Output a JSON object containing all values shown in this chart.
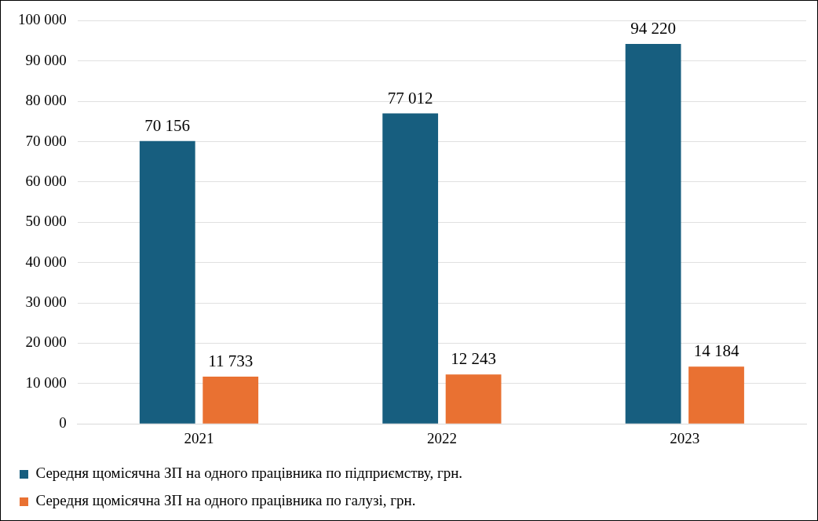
{
  "chart_data": {
    "type": "bar",
    "categories": [
      "2021",
      "2022",
      "2023"
    ],
    "series": [
      {
        "name": "Середня щомісячна ЗП на одного працівника по підприємству, грн.",
        "color": "#175e7f",
        "values": [
          70156,
          77012,
          94220
        ],
        "value_labels": [
          "70 156",
          "77 012",
          "94 220"
        ]
      },
      {
        "name": "Середня щомісячна ЗП на одного працівника по галузі, грн.",
        "color": "#e97132",
        "values": [
          11733,
          12243,
          14184
        ],
        "value_labels": [
          "11 733",
          "12 243",
          "14 184"
        ]
      }
    ],
    "ylim": [
      0,
      100000
    ],
    "yticks": [
      0,
      {
        "value": 10000,
        "label": "10 000"
      },
      {
        "value": 20000,
        "label": "20 000"
      },
      {
        "value": 30000,
        "label": "30 000"
      },
      {
        "value": 40000,
        "label": "40 000"
      },
      {
        "value": 50000,
        "label": "50 000"
      },
      {
        "value": 60000,
        "label": "60 000"
      },
      {
        "value": 70000,
        "label": "70 000"
      },
      {
        "value": 80000,
        "label": "80 000"
      },
      {
        "value": 90000,
        "label": "90 000"
      },
      {
        "value": 100000,
        "label": "100 000"
      }
    ],
    "grid": "y",
    "legend": "bottom"
  }
}
